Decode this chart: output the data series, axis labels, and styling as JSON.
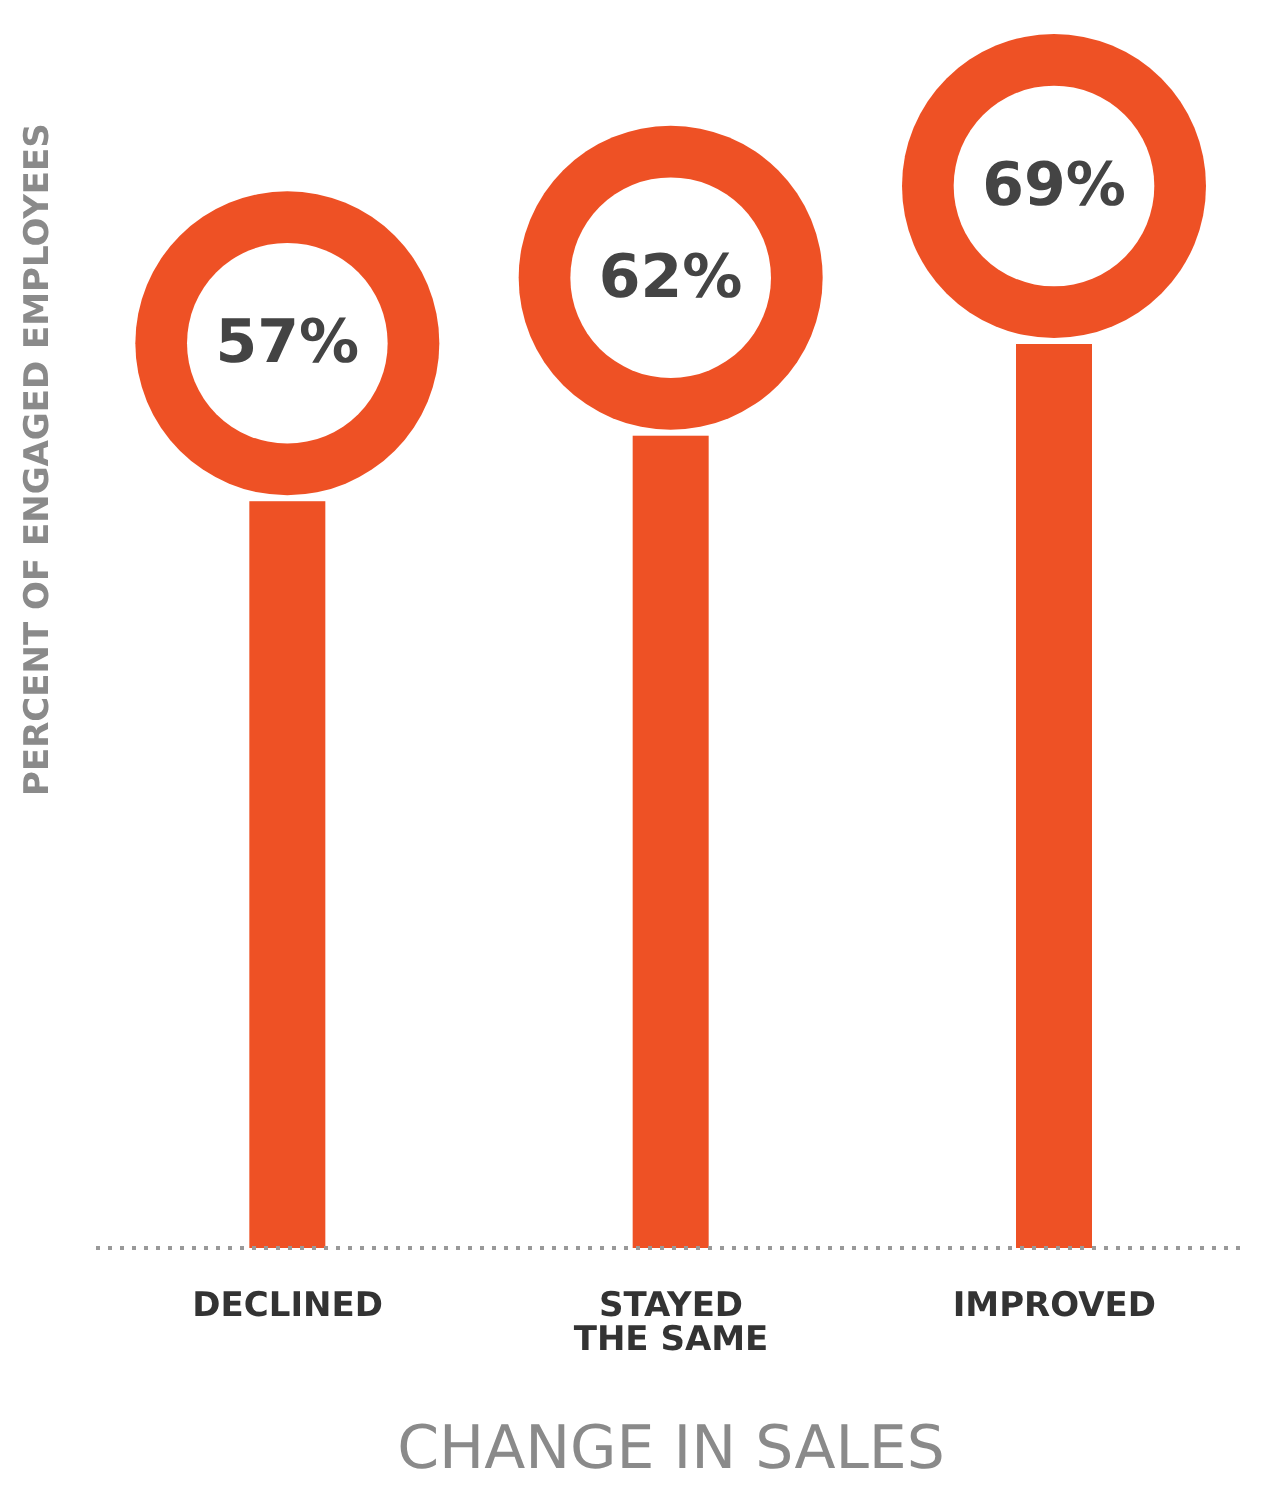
{
  "chart_data": {
    "type": "bar",
    "categories": [
      "DECLINED",
      "STAYED THE SAME",
      "IMPROVED"
    ],
    "values": [
      57,
      62,
      69
    ],
    "color": "#ee5125",
    "value_labels": [
      "57%",
      "62%",
      "69%"
    ],
    "xlabel": "CHANGE IN SALES",
    "ylabel": "PERCENT OF ENGAGED EMPLOYEES",
    "grid": false,
    "legend": false
  }
}
